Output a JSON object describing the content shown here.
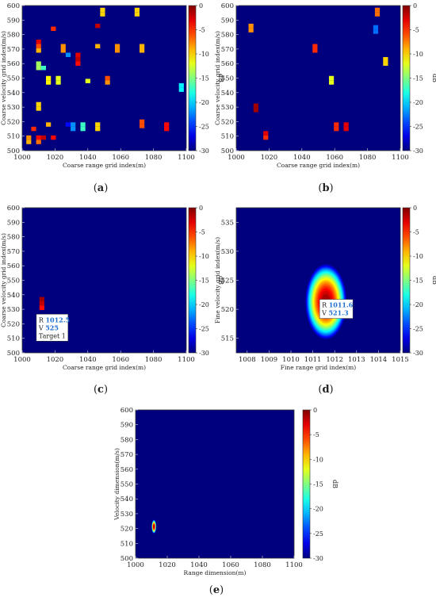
{
  "colors": {
    "background": "#00007f",
    "axis_frame": "#333333",
    "annotation_bg": "#ffffff",
    "annotation_value": "#1f6fd0",
    "colormap": [
      "#00007f",
      "#0000ff",
      "#007fff",
      "#00ffff",
      "#7fff7f",
      "#ffff00",
      "#ff7f00",
      "#ff0000",
      "#7f0000"
    ]
  },
  "chart_data": [
    {
      "id": "a",
      "panel_label": "a",
      "type": "heatmap",
      "xlabel": "Coarse range grid index(m)",
      "ylabel": "Coarse velocity grid index(m/s)",
      "xlim": [
        1000,
        1100
      ],
      "ylim": [
        500,
        600
      ],
      "xticks": [
        1000,
        1020,
        1040,
        1060,
        1080,
        1100
      ],
      "yticks": [
        500,
        510,
        520,
        530,
        540,
        550,
        560,
        570,
        580,
        590,
        600
      ],
      "colorbar": {
        "label": "dB",
        "range": [
          -30,
          0
        ],
        "ticks": [
          0,
          -5,
          -10,
          -15,
          -20,
          -25,
          -30
        ]
      },
      "cell_size": [
        3,
        3
      ],
      "cells": [
        {
          "x": 1004,
          "y": 509,
          "db": -8
        },
        {
          "x": 1004,
          "y": 506,
          "db": -9
        },
        {
          "x": 1007,
          "y": 515,
          "db": -5
        },
        {
          "x": 1010,
          "y": 575,
          "db": -3
        },
        {
          "x": 1010,
          "y": 572,
          "db": -6
        },
        {
          "x": 1010,
          "y": 569,
          "db": -9
        },
        {
          "x": 1010,
          "y": 560,
          "db": -14
        },
        {
          "x": 1010,
          "y": 557,
          "db": -14
        },
        {
          "x": 1010,
          "y": 532,
          "db": -10
        },
        {
          "x": 1010,
          "y": 529,
          "db": -10
        },
        {
          "x": 1010,
          "y": 509,
          "db": -4
        },
        {
          "x": 1010,
          "y": 506,
          "db": -7
        },
        {
          "x": 1013,
          "y": 557,
          "db": -17
        },
        {
          "x": 1013,
          "y": 509,
          "db": -2
        },
        {
          "x": 1016,
          "y": 550,
          "db": -11
        },
        {
          "x": 1016,
          "y": 547,
          "db": -11
        },
        {
          "x": 1016,
          "y": 518,
          "db": -9
        },
        {
          "x": 1019,
          "y": 584,
          "db": -5
        },
        {
          "x": 1019,
          "y": 509,
          "db": -4
        },
        {
          "x": 1022,
          "y": 550,
          "db": -12
        },
        {
          "x": 1022,
          "y": 547,
          "db": -12
        },
        {
          "x": 1025,
          "y": 572,
          "db": -8
        },
        {
          "x": 1025,
          "y": 569,
          "db": -8
        },
        {
          "x": 1028,
          "y": 566,
          "db": -22
        },
        {
          "x": 1028,
          "y": 518,
          "db": -26
        },
        {
          "x": 1031,
          "y": 518,
          "db": -22
        },
        {
          "x": 1031,
          "y": 515,
          "db": -22
        },
        {
          "x": 1034,
          "y": 566,
          "db": -3
        },
        {
          "x": 1034,
          "y": 563,
          "db": -2
        },
        {
          "x": 1034,
          "y": 560,
          "db": -4
        },
        {
          "x": 1037,
          "y": 518,
          "db": -17
        },
        {
          "x": 1037,
          "y": 515,
          "db": -17
        },
        {
          "x": 1040,
          "y": 548,
          "db": -12
        },
        {
          "x": 1046,
          "y": 586,
          "db": -2
        },
        {
          "x": 1046,
          "y": 572,
          "db": -9
        },
        {
          "x": 1046,
          "y": 518,
          "db": -10
        },
        {
          "x": 1046,
          "y": 515,
          "db": -10
        },
        {
          "x": 1049,
          "y": 597,
          "db": -10
        },
        {
          "x": 1049,
          "y": 594,
          "db": -10
        },
        {
          "x": 1052,
          "y": 550,
          "db": -6
        },
        {
          "x": 1052,
          "y": 547,
          "db": -8
        },
        {
          "x": 1058,
          "y": 572,
          "db": -8
        },
        {
          "x": 1058,
          "y": 569,
          "db": -8
        },
        {
          "x": 1070,
          "y": 597,
          "db": -10
        },
        {
          "x": 1070,
          "y": 594,
          "db": -10
        },
        {
          "x": 1073,
          "y": 572,
          "db": -9
        },
        {
          "x": 1073,
          "y": 569,
          "db": -9
        },
        {
          "x": 1073,
          "y": 520,
          "db": -6
        },
        {
          "x": 1073,
          "y": 517,
          "db": -6
        },
        {
          "x": 1088,
          "y": 518,
          "db": -4
        },
        {
          "x": 1088,
          "y": 515,
          "db": -4
        },
        {
          "x": 1097,
          "y": 545,
          "db": -19
        },
        {
          "x": 1097,
          "y": 542,
          "db": -19
        }
      ]
    },
    {
      "id": "b",
      "panel_label": "b",
      "type": "heatmap",
      "xlabel": "Coarse range grid index(m)",
      "ylabel": "Coarse velocity grid index(m/s)",
      "xlim": [
        1000,
        1100
      ],
      "ylim": [
        500,
        600
      ],
      "xticks": [
        1000,
        1020,
        1040,
        1060,
        1080,
        1100
      ],
      "yticks": [
        500,
        510,
        520,
        530,
        540,
        550,
        560,
        570,
        580,
        590,
        600
      ],
      "colorbar": {
        "label": "dB",
        "range": [
          -30,
          0
        ],
        "ticks": [
          0,
          -5,
          -10,
          -15,
          -20,
          -25,
          -30
        ]
      },
      "cell_size": [
        3,
        3
      ],
      "cells": [
        {
          "x": 1009,
          "y": 586,
          "db": -8
        },
        {
          "x": 1009,
          "y": 583,
          "db": -8
        },
        {
          "x": 1012,
          "y": 531,
          "db": -1
        },
        {
          "x": 1012,
          "y": 528,
          "db": -1
        },
        {
          "x": 1018,
          "y": 512,
          "db": -3
        },
        {
          "x": 1018,
          "y": 509,
          "db": -5
        },
        {
          "x": 1048,
          "y": 572,
          "db": -5
        },
        {
          "x": 1048,
          "y": 569,
          "db": -5
        },
        {
          "x": 1058,
          "y": 550,
          "db": -12
        },
        {
          "x": 1058,
          "y": 547,
          "db": -12
        },
        {
          "x": 1061,
          "y": 518,
          "db": -5
        },
        {
          "x": 1061,
          "y": 515,
          "db": -5
        },
        {
          "x": 1067,
          "y": 518,
          "db": -3
        },
        {
          "x": 1067,
          "y": 515,
          "db": -3
        },
        {
          "x": 1086,
          "y": 597,
          "db": -7
        },
        {
          "x": 1086,
          "y": 594,
          "db": -7
        },
        {
          "x": 1085,
          "y": 585,
          "db": -23
        },
        {
          "x": 1085,
          "y": 582,
          "db": -23
        },
        {
          "x": 1091,
          "y": 563,
          "db": -10
        },
        {
          "x": 1091,
          "y": 560,
          "db": -10
        }
      ]
    },
    {
      "id": "c",
      "panel_label": "c",
      "type": "heatmap",
      "xlabel": "Coarse range grid index(m)",
      "ylabel": "Coarse velocity grid index(m/s)",
      "xlim": [
        1000,
        1100
      ],
      "ylim": [
        500,
        600
      ],
      "xticks": [
        1000,
        1020,
        1040,
        1060,
        1080,
        1100
      ],
      "yticks": [
        500,
        510,
        520,
        530,
        540,
        550,
        560,
        570,
        580,
        590,
        600
      ],
      "colorbar": {
        "label": "dB",
        "range": [
          -30,
          0
        ],
        "ticks": [
          0,
          -5,
          -10,
          -15,
          -20,
          -25,
          -30
        ]
      },
      "cell_size": [
        3,
        3
      ],
      "cells": [
        {
          "x": 1012,
          "y": 537,
          "db": -1
        },
        {
          "x": 1012,
          "y": 534,
          "db": -2
        },
        {
          "x": 1012,
          "y": 531,
          "db": -4
        }
      ],
      "annotation": {
        "x": 1012.5,
        "y": 525,
        "r_label": "R",
        "r_value": "1012.5",
        "v_label": "V",
        "v_value": "525",
        "target": "Target 1"
      }
    },
    {
      "id": "d",
      "panel_label": "d",
      "type": "heatmap",
      "xlabel": "Fine range grid index(m)",
      "ylabel": "Fine velocity grid index(m/s)",
      "xlim": [
        1007.5,
        1015
      ],
      "ylim": [
        512.5,
        537.5
      ],
      "xticks": [
        1008,
        1009,
        1010,
        1011,
        1012,
        1013,
        1014,
        1015
      ],
      "yticks": [
        515,
        520,
        525,
        530,
        535
      ],
      "colorbar": {
        "label": "dB",
        "range": [
          -30,
          0
        ],
        "ticks": [
          0,
          -5,
          -10,
          -15,
          -20,
          -25,
          -30
        ]
      },
      "peak": {
        "x": 1011.6,
        "y": 521.3,
        "sigma_x": 0.32,
        "sigma_y": 2.2
      },
      "annotation": {
        "x": 1011.6,
        "y": 521.3,
        "r_label": "R",
        "r_value": "1011.6",
        "v_label": "V",
        "v_value": "521.3"
      }
    },
    {
      "id": "e",
      "panel_label": "e",
      "type": "heatmap",
      "xlabel": "Range dimension(m)",
      "ylabel": "Velocity dimension(m/s)",
      "xlim": [
        1000,
        1100
      ],
      "ylim": [
        500,
        600
      ],
      "xticks": [
        1000,
        1020,
        1040,
        1060,
        1080,
        1100
      ],
      "yticks": [
        500,
        510,
        520,
        530,
        540,
        550,
        560,
        570,
        580,
        590,
        600
      ],
      "colorbar": {
        "label": "dB",
        "range": [
          -30,
          0
        ],
        "ticks": [
          0,
          -5,
          -10,
          -15,
          -20,
          -25,
          -30
        ]
      },
      "peak": {
        "x": 1011.6,
        "y": 521.3,
        "sigma_x": 0.5,
        "sigma_y": 1.6
      }
    }
  ]
}
